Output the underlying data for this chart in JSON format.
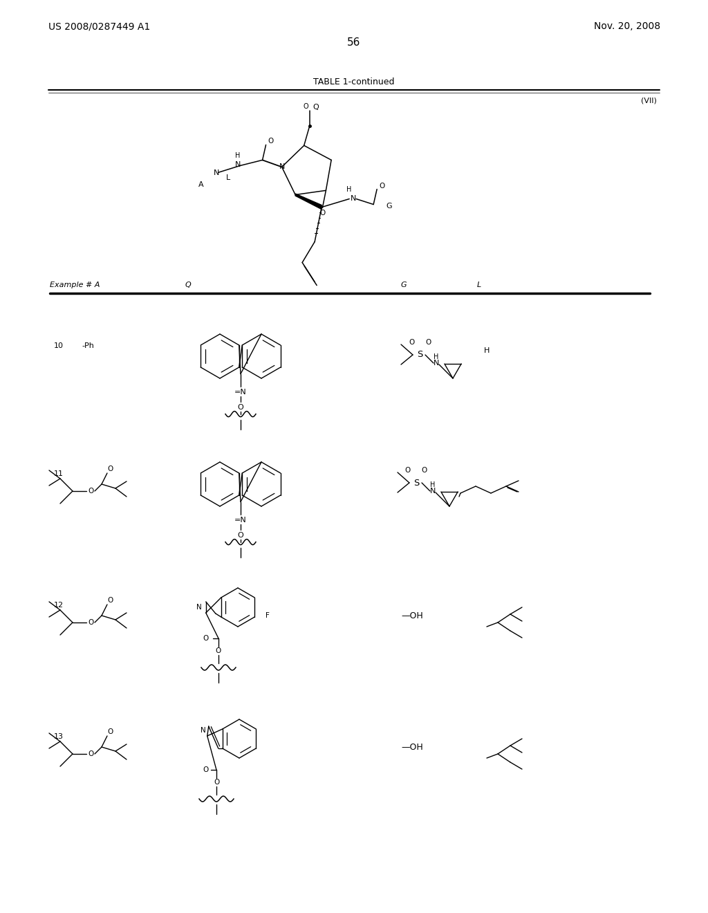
{
  "page_number": "56",
  "patent_number": "US 2008/0287449 A1",
  "patent_date": "Nov. 20, 2008",
  "table_title": "TABLE 1-continued",
  "column_label": "(VII)",
  "background_color": "#ffffff"
}
